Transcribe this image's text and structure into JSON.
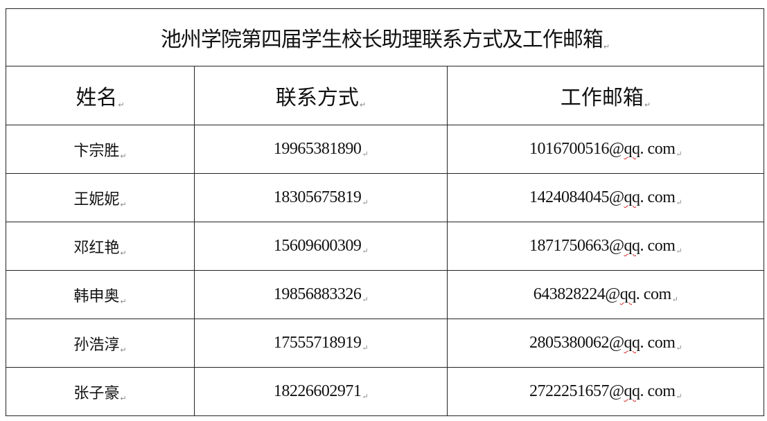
{
  "title": "池州学院第四届学生校长助理联系方式及工作邮箱",
  "columns": [
    "姓名",
    "联系方式",
    "工作邮箱"
  ],
  "rows": [
    {
      "name": "卞宗胜",
      "phone": "19965381890",
      "email_user": "1016700516@",
      "email_domain": "qq",
      "email_tld": ". com"
    },
    {
      "name": "王妮妮",
      "phone": "18305675819",
      "email_user": "1424084045@",
      "email_domain": "qq",
      "email_tld": ". com"
    },
    {
      "name": "邓红艳",
      "phone": "15609600309",
      "email_user": "1871750663@",
      "email_domain": "qq",
      "email_tld": ". com"
    },
    {
      "name": "韩申奥",
      "phone": "19856883326",
      "email_user": "643828224@",
      "email_domain": "qq",
      "email_tld": ". com"
    },
    {
      "name": "孙浩淳",
      "phone": "17555718919",
      "email_user": "2805380062@",
      "email_domain": "qq",
      "email_tld": ". com"
    },
    {
      "name": "张子豪",
      "phone": "18226602971",
      "email_user": "2722251657@",
      "email_domain": "qq",
      "email_tld": ". com"
    }
  ]
}
